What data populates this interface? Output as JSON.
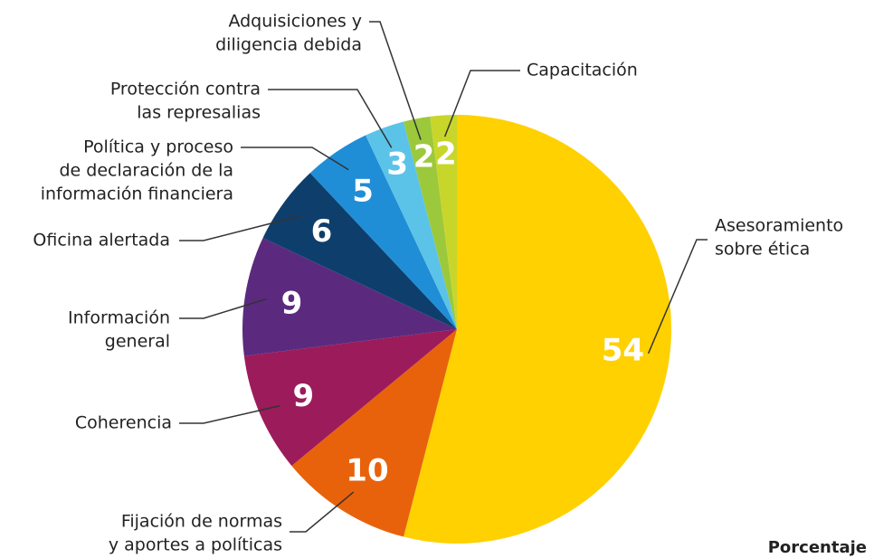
{
  "chart_data": {
    "type": "pie",
    "categories": [
      [
        "Asesoramiento",
        "sobre ética"
      ],
      [
        "Fijación de normas",
        "y aportes a políticas"
      ],
      [
        "Coherencia"
      ],
      [
        "Información",
        "general"
      ],
      [
        "Oficina alertada"
      ],
      [
        "Política y proceso",
        "de declaración de la",
        "información financiera"
      ],
      [
        "Protección contra",
        "las represalias"
      ],
      [
        "Adquisiciones y",
        "diligencia debida"
      ],
      [
        "Capacitación"
      ]
    ],
    "values": [
      54,
      10,
      9,
      9,
      6,
      5,
      3,
      2,
      2
    ],
    "colors": [
      "#FFD100",
      "#E8620C",
      "#9C1B5B",
      "#5B2A7F",
      "#0E3F6C",
      "#1F8ED6",
      "#5CC3E8",
      "#9CC83B",
      "#C8D62B"
    ],
    "unit_label": "Porcentaje"
  }
}
